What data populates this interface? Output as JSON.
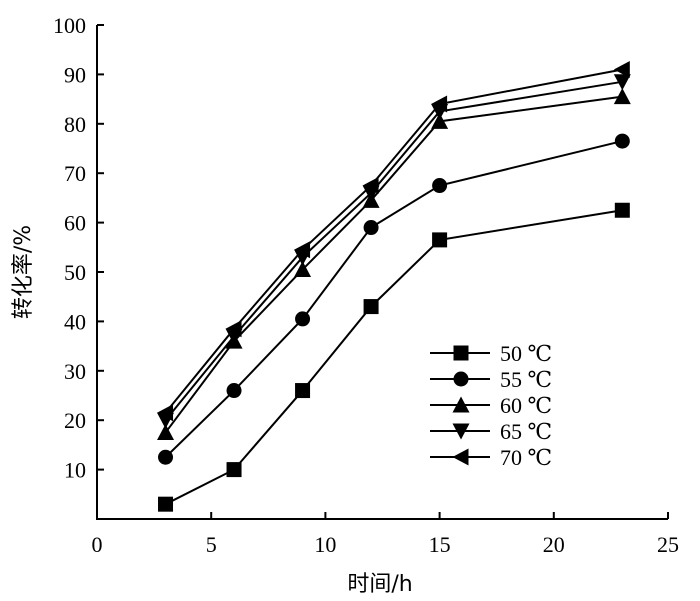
{
  "chart_data": {
    "type": "line",
    "title": "",
    "xlabel": "时间/h",
    "ylabel": "转化率/%",
    "xlim": [
      0,
      25
    ],
    "ylim": [
      0,
      100
    ],
    "xticks": [
      0,
      5,
      10,
      15,
      20,
      25
    ],
    "yticks": [
      10,
      20,
      30,
      40,
      50,
      60,
      70,
      80,
      90,
      100
    ],
    "x_tick_labels": [
      "0",
      "5",
      "10",
      "15",
      "20",
      "25"
    ],
    "y_tick_labels": [
      "10",
      "20",
      "30",
      "40",
      "50",
      "60",
      "70",
      "80",
      "90",
      "100"
    ],
    "grid": false,
    "legend_position": "bottom-right",
    "x": [
      3,
      6,
      9,
      12,
      15,
      23
    ],
    "series": [
      {
        "name": "50 ℃",
        "marker": "square",
        "values": [
          3,
          10,
          26,
          43,
          56.5,
          62.5
        ]
      },
      {
        "name": "55 ℃",
        "marker": "circle",
        "values": [
          12.5,
          26,
          40.5,
          59,
          67.5,
          76.5
        ]
      },
      {
        "name": "60 ℃",
        "marker": "triangle-up",
        "values": [
          17.5,
          36,
          50.5,
          64.5,
          80.5,
          85.5
        ]
      },
      {
        "name": "65 ℃",
        "marker": "triangle-down",
        "values": [
          20,
          37,
          53,
          66,
          82.5,
          88.5
        ]
      },
      {
        "name": "70 ℃",
        "marker": "triangle-left",
        "values": [
          21.5,
          38.5,
          54.5,
          67.5,
          84,
          91
        ]
      }
    ]
  }
}
